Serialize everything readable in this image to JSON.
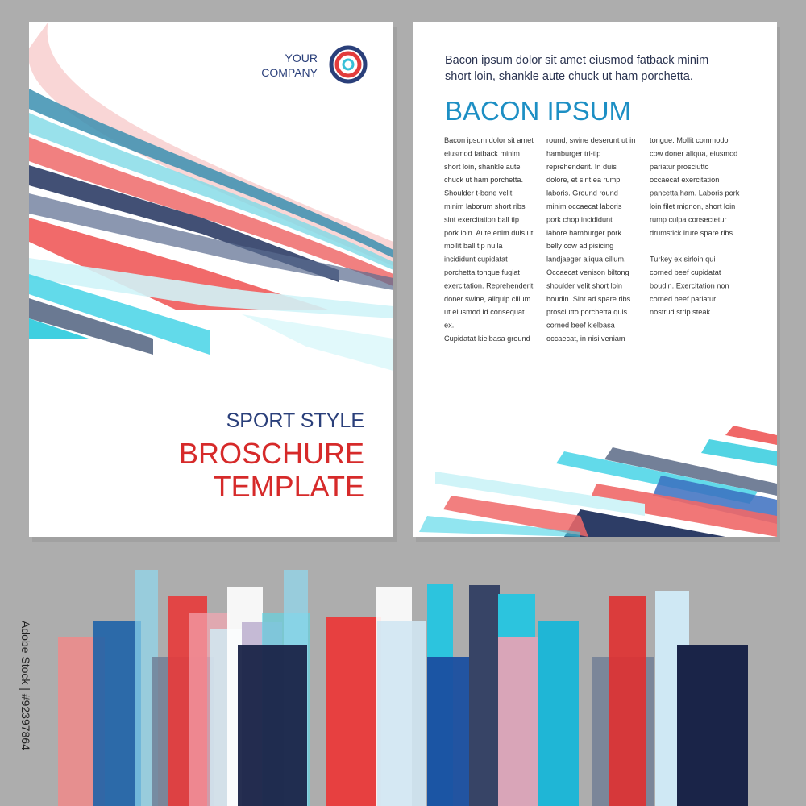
{
  "logo": {
    "line_1": "YOUR",
    "line_2": "COMPANY"
  },
  "cover": {
    "kicker": "SPORT STYLE",
    "title_1": "BROSCHURE",
    "title_2": "TEMPLATE"
  },
  "inner": {
    "intro": [
      "Bacon ipsum dolor sit amet eiusmod fatback minim",
      "short loin, shankle aute chuck ut ham porchetta."
    ],
    "heading": "BACON IPSUM",
    "columns": [
      [
        [
          "Bacon ipsum dolor sit amet",
          "eiusmod fatback minim",
          "short loin, shankle aute",
          "chuck ut ham porchetta.",
          "Shoulder t-bone velit,",
          "minim laborum short ribs",
          "sint exercitation ball tip",
          "pork loin. Aute enim duis ut,",
          "mollit ball tip nulla",
          "incididunt cupidatat",
          "porchetta tongue fugiat",
          "exercitation. Reprehenderit",
          "doner swine, aliquip cillum",
          "ut eiusmod id consequat",
          "ex.",
          "Cupidatat kielbasa ground"
        ]
      ],
      [
        [
          "round, swine deserunt ut in",
          "hamburger tri-tip",
          "reprehenderit. In duis",
          "dolore, et sint ea rump",
          "laboris. Ground round",
          "minim occaecat laboris",
          "pork chop incididunt",
          "labore hamburger pork",
          "belly cow adipisicing",
          "landjaeger aliqua cillum.",
          "Occaecat venison biltong",
          "shoulder velit short loin",
          "boudin. Sint ad spare ribs",
          "prosciutto porchetta quis",
          "corned beef kielbasa",
          "occaecat, in nisi veniam"
        ]
      ],
      [
        [
          "tongue. Mollit commodo",
          "cow doner aliqua, eiusmod",
          "pariatur prosciutto",
          "occaecat exercitation",
          "pancetta ham. Laboris pork",
          "loin filet mignon, short loin",
          "rump culpa consectetur",
          "drumstick irure spare ribs."
        ],
        [
          "Turkey ex sirloin qui",
          "corned beef cupidatat",
          "boudin. Exercitation non",
          "corned beef pariatur",
          "nostrud strip steak."
        ]
      ]
    ]
  },
  "stock_id": "Adobe Stock | #92397864"
}
